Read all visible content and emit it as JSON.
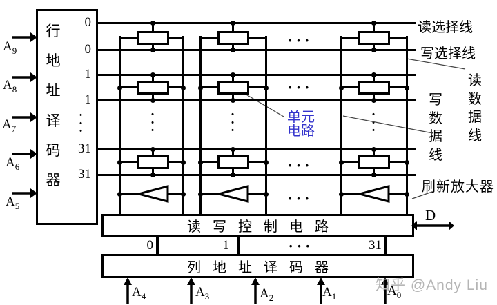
{
  "row_decoder": {
    "title": "行地址译码器",
    "row_labels": [
      "0",
      "0",
      "1",
      "1",
      "···",
      "31",
      "31"
    ]
  },
  "address_inputs_left": [
    {
      "base": "A",
      "sub": "9"
    },
    {
      "base": "A",
      "sub": "8"
    },
    {
      "base": "A",
      "sub": "7"
    },
    {
      "base": "A",
      "sub": "6"
    },
    {
      "base": "A",
      "sub": "5"
    }
  ],
  "address_inputs_bottom": [
    {
      "base": "A",
      "sub": "4"
    },
    {
      "base": "A",
      "sub": "3"
    },
    {
      "base": "A",
      "sub": "2"
    },
    {
      "base": "A",
      "sub": "1"
    },
    {
      "base": "A",
      "sub": "0"
    }
  ],
  "line_labels": {
    "read_select": "读选择线",
    "write_select": "写选择线",
    "read_data": "读数据线",
    "write_data": "写数据线",
    "refresh_amplifier": "刷新放大器",
    "unit_circuit": "单元电路"
  },
  "control_circuit": {
    "title": "读写控制电路",
    "data_pin": "D"
  },
  "column_decoder": {
    "title": "列地址译码器",
    "column_labels": [
      "0",
      "1",
      "···",
      "31"
    ]
  },
  "ellipsis": {
    "horizontal": "···",
    "vertical": "···"
  },
  "watermark": "知乎 @Andy Liu",
  "colors": {
    "line": "#000000",
    "unit_circuit_label": "#3333cc",
    "watermark": "#b5b5b5"
  }
}
